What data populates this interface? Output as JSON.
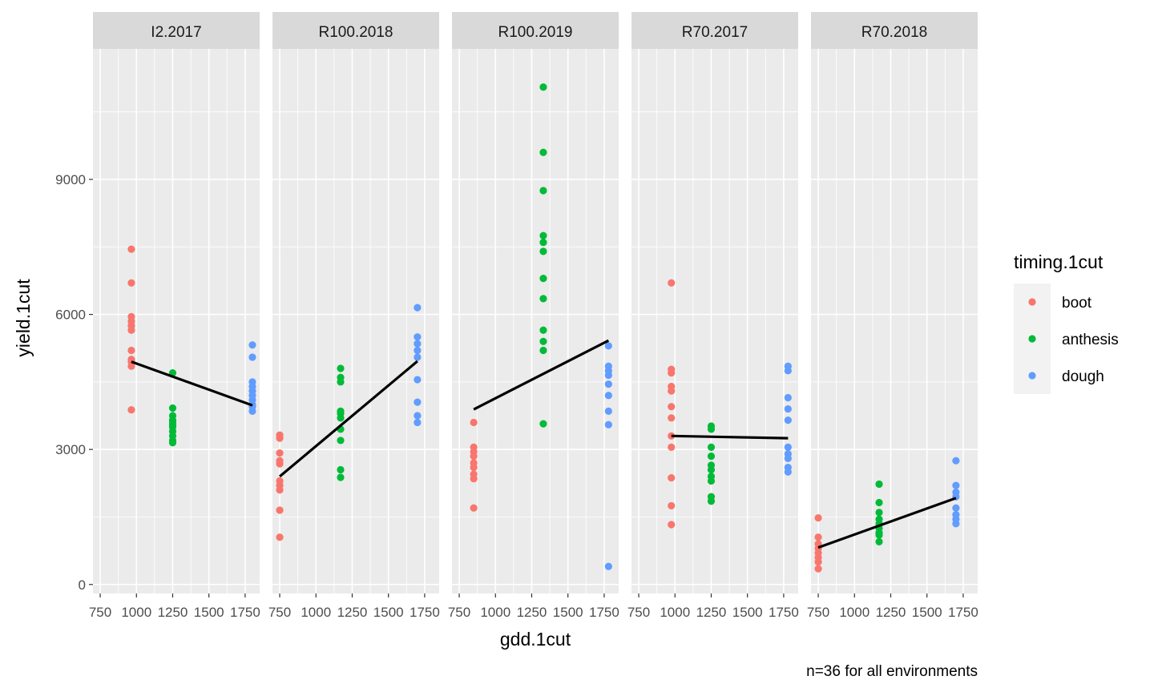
{
  "chart_data": {
    "type": "scatter",
    "xlabel": "gdd.1cut",
    "ylabel": "yield.1cut",
    "caption": "n=36 for all environments",
    "xlim": [
      700,
      1850
    ],
    "ylim": [
      -200,
      11900
    ],
    "x_ticks": [
      750,
      1000,
      1250,
      1500,
      1750
    ],
    "y_ticks": [
      0,
      3000,
      6000,
      9000
    ],
    "x_tick_labels": [
      "750",
      "1000",
      "1250",
      "1500",
      "1750"
    ],
    "y_tick_labels": [
      "0",
      "3000",
      "6000",
      "9000"
    ],
    "legend": {
      "title": "timing.1cut",
      "placement": "right",
      "entries": [
        {
          "label": "boot",
          "color": "#F8766D"
        },
        {
          "label": "anthesis",
          "color": "#00BA38"
        },
        {
          "label": "dough",
          "color": "#619CFF"
        }
      ]
    },
    "facets": [
      {
        "label": "I2.2017",
        "groups": [
          {
            "series": "boot",
            "x": 965,
            "y": [
              7450,
              6700,
              5950,
              5850,
              5750,
              5650,
              5200,
              5000,
              4950,
              4850,
              3880
            ]
          },
          {
            "series": "anthesis",
            "x": 1250,
            "y": [
              4700,
              3920,
              3750,
              3650,
              3600,
              3550,
              3500,
              3400,
              3300,
              3200,
              3150
            ]
          },
          {
            "series": "dough",
            "x": 1800,
            "y": [
              5320,
              5050,
              4500,
              4400,
              4300,
              4200,
              4100,
              4000,
              3950,
              3850
            ]
          }
        ],
        "trend": {
          "x": [
            965,
            1800
          ],
          "y": [
            4950,
            3980
          ]
        }
      },
      {
        "label": "R100.2018",
        "groups": [
          {
            "series": "boot",
            "x": 750,
            "y": [
              3320,
              3250,
              2920,
              2750,
              2680,
              2300,
              2200,
              2100,
              1650,
              1050
            ]
          },
          {
            "series": "anthesis",
            "x": 1170,
            "y": [
              4800,
              4600,
              4500,
              3850,
              3800,
              3700,
              3450,
              3200,
              2550,
              2380
            ]
          },
          {
            "series": "dough",
            "x": 1700,
            "y": [
              6150,
              5500,
              5350,
              5200,
              5050,
              4550,
              4050,
              3750,
              3600
            ]
          }
        ],
        "trend": {
          "x": [
            750,
            1700
          ],
          "y": [
            2400,
            4960
          ]
        }
      },
      {
        "label": "R100.2019",
        "groups": [
          {
            "series": "boot",
            "x": 850,
            "y": [
              3600,
              3050,
              2950,
              2850,
              2700,
              2600,
              2450,
              2350,
              1700
            ]
          },
          {
            "series": "anthesis",
            "x": 1330,
            "y": [
              11050,
              9600,
              8750,
              7750,
              7600,
              7400,
              6800,
              6350,
              5650,
              5400,
              5200,
              3570
            ]
          },
          {
            "series": "dough",
            "x": 1780,
            "y": [
              5300,
              4850,
              4750,
              4650,
              4450,
              4200,
              3850,
              3550,
              400
            ]
          }
        ],
        "trend": {
          "x": [
            850,
            1780
          ],
          "y": [
            3890,
            5420
          ]
        }
      },
      {
        "label": "R70.2017",
        "groups": [
          {
            "series": "boot",
            "x": 975,
            "y": [
              6700,
              4780,
              4700,
              4400,
              4300,
              3950,
              3700,
              3300,
              3050,
              2370,
              1750,
              1330
            ]
          },
          {
            "series": "anthesis",
            "x": 1250,
            "y": [
              3520,
              3450,
              3050,
              2850,
              2650,
              2550,
              2400,
              2300,
              1950,
              1850
            ]
          },
          {
            "series": "dough",
            "x": 1780,
            "y": [
              4850,
              4750,
              4150,
              3900,
              3650,
              3050,
              2900,
              2800,
              2600,
              2500
            ]
          }
        ],
        "trend": {
          "x": [
            975,
            1780
          ],
          "y": [
            3300,
            3250
          ]
        }
      },
      {
        "label": "R70.2018",
        "groups": [
          {
            "series": "boot",
            "x": 750,
            "y": [
              1480,
              1050,
              900,
              800,
              700,
              600,
              500,
              350
            ]
          },
          {
            "series": "anthesis",
            "x": 1170,
            "y": [
              2230,
              1820,
              1600,
              1450,
              1350,
              1250,
              1150,
              1100,
              950
            ]
          },
          {
            "series": "dough",
            "x": 1700,
            "y": [
              2750,
              2200,
              2050,
              1950,
              1700,
              1550,
              1450,
              1350
            ]
          }
        ],
        "trend": {
          "x": [
            750,
            1700
          ],
          "y": [
            820,
            1920
          ]
        }
      }
    ]
  }
}
